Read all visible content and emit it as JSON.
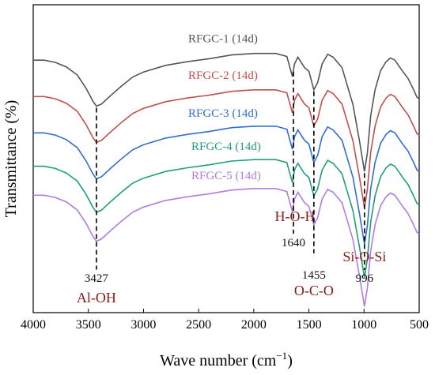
{
  "chart_data": {
    "type": "line",
    "xlabel": "Wave number (cm",
    "xlabel_sup": "−1",
    "xlabel_close": ")",
    "ylabel": "Transmittance (%)",
    "xlim": [
      4000,
      500
    ],
    "x_ticks": [
      "4000",
      "3500",
      "3000",
      "2500",
      "2000",
      "1500",
      "1000",
      "500"
    ],
    "x_tick_values": [
      4000,
      3500,
      3000,
      2500,
      2000,
      1500,
      1000,
      500
    ],
    "y_ticks": "none",
    "grid": false,
    "legend": "inline labels above each curve",
    "series": [
      {
        "name": "RFGC-1 (14d)",
        "color": "#555555",
        "offset": 0,
        "points": [
          [
            4000,
            3.0
          ],
          [
            3900,
            3.0
          ],
          [
            3800,
            3.3
          ],
          [
            3700,
            3.9
          ],
          [
            3600,
            5.0
          ],
          [
            3520,
            6.8
          ],
          [
            3460,
            8.5
          ],
          [
            3427,
            9.2
          ],
          [
            3380,
            8.9
          ],
          [
            3300,
            7.8
          ],
          [
            3200,
            6.5
          ],
          [
            3100,
            5.3
          ],
          [
            3000,
            4.6
          ],
          [
            2800,
            3.7
          ],
          [
            2600,
            3.2
          ],
          [
            2400,
            2.8
          ],
          [
            2200,
            2.3
          ],
          [
            2000,
            2.1
          ],
          [
            1900,
            2.1
          ],
          [
            1800,
            2.1
          ],
          [
            1700,
            2.5
          ],
          [
            1650,
            5.2
          ],
          [
            1630,
            3.5
          ],
          [
            1600,
            2.6
          ],
          [
            1540,
            4.0
          ],
          [
            1500,
            4.5
          ],
          [
            1455,
            7.0
          ],
          [
            1420,
            6.0
          ],
          [
            1380,
            3.5
          ],
          [
            1330,
            2.2
          ],
          [
            1280,
            2.6
          ],
          [
            1200,
            4.0
          ],
          [
            1100,
            9.0
          ],
          [
            1040,
            14.0
          ],
          [
            996,
            18.0
          ],
          [
            970,
            15.5
          ],
          [
            940,
            10.5
          ],
          [
            900,
            7.0
          ],
          [
            850,
            4.4
          ],
          [
            800,
            3.2
          ],
          [
            760,
            2.7
          ],
          [
            720,
            3.0
          ],
          [
            650,
            4.5
          ],
          [
            600,
            5.5
          ],
          [
            550,
            7.0
          ],
          [
            520,
            8.0
          ],
          [
            500,
            8.2
          ]
        ]
      },
      {
        "name": "RFGC-2 (14d)",
        "color": "#c0504d",
        "offset": 4.9,
        "points": [
          [
            4000,
            3.0
          ],
          [
            3900,
            3.0
          ],
          [
            3800,
            3.3
          ],
          [
            3700,
            3.9
          ],
          [
            3600,
            5.0
          ],
          [
            3520,
            6.8
          ],
          [
            3460,
            8.5
          ],
          [
            3427,
            9.2
          ],
          [
            3380,
            8.9
          ],
          [
            3300,
            7.8
          ],
          [
            3200,
            6.5
          ],
          [
            3100,
            5.3
          ],
          [
            3000,
            4.6
          ],
          [
            2800,
            3.7
          ],
          [
            2600,
            3.2
          ],
          [
            2400,
            2.8
          ],
          [
            2200,
            2.3
          ],
          [
            2000,
            2.1
          ],
          [
            1900,
            2.1
          ],
          [
            1800,
            2.1
          ],
          [
            1700,
            2.5
          ],
          [
            1650,
            5.2
          ],
          [
            1630,
            3.5
          ],
          [
            1600,
            2.6
          ],
          [
            1540,
            4.0
          ],
          [
            1500,
            4.5
          ],
          [
            1455,
            7.0
          ],
          [
            1420,
            6.0
          ],
          [
            1380,
            3.5
          ],
          [
            1330,
            2.2
          ],
          [
            1280,
            2.6
          ],
          [
            1200,
            4.0
          ],
          [
            1100,
            9.0
          ],
          [
            1040,
            14.0
          ],
          [
            996,
            18.0
          ],
          [
            970,
            15.5
          ],
          [
            940,
            10.5
          ],
          [
            900,
            7.0
          ],
          [
            850,
            4.4
          ],
          [
            800,
            3.2
          ],
          [
            760,
            2.7
          ],
          [
            720,
            3.0
          ],
          [
            650,
            4.5
          ],
          [
            600,
            5.5
          ],
          [
            550,
            7.0
          ],
          [
            520,
            8.0
          ],
          [
            500,
            8.2
          ]
        ]
      },
      {
        "name": "RFGC-3 (14d)",
        "color": "#2f6fcf",
        "offset": 9.8,
        "points": [
          [
            4000,
            3.0
          ],
          [
            3900,
            3.0
          ],
          [
            3800,
            3.3
          ],
          [
            3700,
            3.9
          ],
          [
            3600,
            5.0
          ],
          [
            3520,
            6.8
          ],
          [
            3460,
            8.5
          ],
          [
            3427,
            9.2
          ],
          [
            3380,
            8.9
          ],
          [
            3300,
            7.8
          ],
          [
            3200,
            6.5
          ],
          [
            3100,
            5.3
          ],
          [
            3000,
            4.6
          ],
          [
            2800,
            3.7
          ],
          [
            2600,
            3.2
          ],
          [
            2400,
            2.8
          ],
          [
            2200,
            2.3
          ],
          [
            2000,
            2.1
          ],
          [
            1900,
            2.1
          ],
          [
            1800,
            2.1
          ],
          [
            1700,
            2.5
          ],
          [
            1650,
            5.2
          ],
          [
            1630,
            3.5
          ],
          [
            1600,
            2.6
          ],
          [
            1540,
            4.0
          ],
          [
            1500,
            4.5
          ],
          [
            1455,
            7.0
          ],
          [
            1420,
            6.0
          ],
          [
            1380,
            3.5
          ],
          [
            1330,
            2.2
          ],
          [
            1280,
            2.6
          ],
          [
            1200,
            4.0
          ],
          [
            1100,
            9.0
          ],
          [
            1040,
            14.0
          ],
          [
            996,
            18.0
          ],
          [
            970,
            15.5
          ],
          [
            940,
            10.5
          ],
          [
            900,
            7.0
          ],
          [
            850,
            4.4
          ],
          [
            800,
            3.2
          ],
          [
            760,
            2.7
          ],
          [
            720,
            3.0
          ],
          [
            650,
            4.5
          ],
          [
            600,
            5.5
          ],
          [
            550,
            7.0
          ],
          [
            520,
            8.0
          ],
          [
            500,
            8.2
          ]
        ]
      },
      {
        "name": "RFGC-4 (14d)",
        "color": "#1f9e7a",
        "offset": 14.3,
        "points": [
          [
            4000,
            3.0
          ],
          [
            3900,
            3.0
          ],
          [
            3800,
            3.3
          ],
          [
            3700,
            3.9
          ],
          [
            3600,
            5.0
          ],
          [
            3520,
            6.8
          ],
          [
            3460,
            8.5
          ],
          [
            3427,
            9.2
          ],
          [
            3380,
            8.9
          ],
          [
            3300,
            7.8
          ],
          [
            3200,
            6.5
          ],
          [
            3100,
            5.3
          ],
          [
            3000,
            4.6
          ],
          [
            2800,
            3.7
          ],
          [
            2600,
            3.2
          ],
          [
            2400,
            2.8
          ],
          [
            2200,
            2.3
          ],
          [
            2000,
            2.1
          ],
          [
            1900,
            2.1
          ],
          [
            1800,
            2.1
          ],
          [
            1700,
            2.5
          ],
          [
            1650,
            5.2
          ],
          [
            1630,
            3.5
          ],
          [
            1600,
            2.6
          ],
          [
            1540,
            4.0
          ],
          [
            1500,
            4.5
          ],
          [
            1455,
            7.0
          ],
          [
            1420,
            6.0
          ],
          [
            1380,
            3.5
          ],
          [
            1330,
            2.2
          ],
          [
            1280,
            2.6
          ],
          [
            1200,
            4.0
          ],
          [
            1100,
            9.0
          ],
          [
            1040,
            14.0
          ],
          [
            996,
            18.0
          ],
          [
            970,
            15.5
          ],
          [
            940,
            10.5
          ],
          [
            900,
            7.0
          ],
          [
            850,
            4.4
          ],
          [
            800,
            3.2
          ],
          [
            760,
            2.7
          ],
          [
            720,
            3.0
          ],
          [
            650,
            4.5
          ],
          [
            600,
            5.5
          ],
          [
            550,
            7.0
          ],
          [
            520,
            8.0
          ],
          [
            500,
            8.2
          ]
        ]
      },
      {
        "name": "RFGC-5 (14d)",
        "color": "#b07de0",
        "offset": 18.2,
        "points": [
          [
            4000,
            3.0
          ],
          [
            3900,
            3.0
          ],
          [
            3800,
            3.3
          ],
          [
            3700,
            3.9
          ],
          [
            3600,
            5.0
          ],
          [
            3520,
            6.8
          ],
          [
            3460,
            8.5
          ],
          [
            3427,
            9.2
          ],
          [
            3380,
            8.9
          ],
          [
            3300,
            7.8
          ],
          [
            3200,
            6.5
          ],
          [
            3100,
            5.3
          ],
          [
            3000,
            4.6
          ],
          [
            2800,
            3.7
          ],
          [
            2600,
            3.2
          ],
          [
            2400,
            2.8
          ],
          [
            2200,
            2.3
          ],
          [
            2000,
            2.1
          ],
          [
            1900,
            2.1
          ],
          [
            1800,
            2.1
          ],
          [
            1700,
            2.5
          ],
          [
            1650,
            5.2
          ],
          [
            1630,
            3.5
          ],
          [
            1600,
            2.6
          ],
          [
            1540,
            4.0
          ],
          [
            1500,
            4.5
          ],
          [
            1455,
            7.0
          ],
          [
            1420,
            6.0
          ],
          [
            1380,
            3.5
          ],
          [
            1330,
            2.2
          ],
          [
            1280,
            2.6
          ],
          [
            1200,
            4.0
          ],
          [
            1100,
            9.0
          ],
          [
            1040,
            14.0
          ],
          [
            996,
            18.0
          ],
          [
            970,
            15.5
          ],
          [
            940,
            10.5
          ],
          [
            900,
            7.0
          ],
          [
            850,
            4.4
          ],
          [
            800,
            3.2
          ],
          [
            760,
            2.7
          ],
          [
            720,
            3.0
          ],
          [
            650,
            4.5
          ],
          [
            600,
            5.5
          ],
          [
            550,
            7.0
          ],
          [
            520,
            8.0
          ],
          [
            500,
            8.2
          ]
        ]
      }
    ],
    "annotations": [
      {
        "wavenumber": 3427,
        "number": "3427",
        "group": "Al-OH"
      },
      {
        "wavenumber": 1640,
        "number": "1640",
        "group": "H-O-H"
      },
      {
        "wavenumber": 1455,
        "number": "1455",
        "group": "O-C-O"
      },
      {
        "wavenumber": 996,
        "number": "996",
        "group": "Si-O-Si"
      }
    ]
  }
}
